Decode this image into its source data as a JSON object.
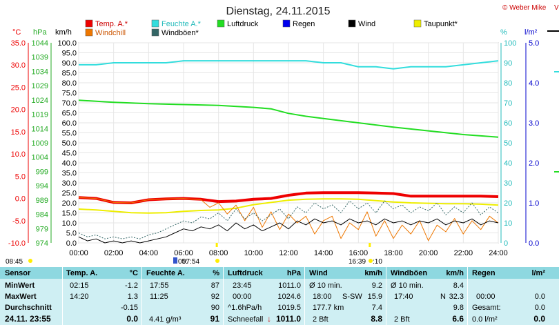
{
  "header": {
    "title": "Dienstag, 24.11.2015",
    "copyright": "© Weber Mike"
  },
  "legend": [
    {
      "label": "Temp. A.*",
      "color": "#ee0000"
    },
    {
      "label": "Feuchte A.*",
      "color": "#33dddd"
    },
    {
      "label": "Luftdruck",
      "color": "#22dd22"
    },
    {
      "label": "Regen",
      "color": "#0000ee"
    },
    {
      "label": "Wind",
      "color": "#000000"
    },
    {
      "label": "Taupunkt*",
      "color": "#eeee00"
    },
    {
      "label": "Windchill",
      "color": "#ee7700"
    },
    {
      "label": "Windböen*",
      "color": "#336666"
    }
  ],
  "axes_units": {
    "temp": "°C",
    "pressure": "hPa",
    "wind": "km/h",
    "humidity": "%",
    "rain": "l/m²"
  },
  "chart_data": {
    "type": "line",
    "x_ticks": [
      "00:00",
      "02:00",
      "04:00",
      "06:00",
      "08:00",
      "10:00",
      "12:00",
      "14:00",
      "16:00",
      "18:00",
      "20:00",
      "22:00",
      "24:00"
    ],
    "xlim": [
      "00:00",
      "24:00"
    ],
    "y_axes": {
      "temp_c": {
        "ticks": [
          "35.0",
          "30.0",
          "25.0",
          "20.0",
          "15.0",
          "10.0",
          "5.0",
          "0.0",
          "-5.0",
          "-10.0"
        ],
        "range": [
          -10,
          35
        ]
      },
      "pressure_hpa": {
        "ticks": [
          "1044",
          "1039",
          "1034",
          "1029",
          "1024",
          "1019",
          "1014",
          "1009",
          "1004",
          "999",
          "994",
          "989",
          "984",
          "979",
          "974"
        ],
        "range": [
          974,
          1044
        ]
      },
      "wind_kmh": {
        "ticks": [
          "100.0",
          "95.0",
          "90.0",
          "85.0",
          "80.0",
          "75.0",
          "70.0",
          "65.0",
          "60.0",
          "55.0",
          "50.0",
          "45.0",
          "40.0",
          "35.0",
          "30.0",
          "25.0",
          "20.0",
          "15.0",
          "10.0",
          "5.0",
          "0.0"
        ],
        "range": [
          0,
          100
        ]
      },
      "humidity_pct": {
        "ticks": [
          "100",
          "90",
          "80",
          "70",
          "60",
          "50",
          "40",
          "30",
          "20",
          "10",
          "0"
        ],
        "range": [
          0,
          100
        ]
      },
      "rain_lm2": {
        "ticks": [
          "5.0",
          "4.0",
          "3.0",
          "2.0",
          "1.0",
          "0.0"
        ],
        "range": [
          0,
          5
        ]
      }
    },
    "grid": true,
    "series": [
      {
        "name": "Temp. A.*",
        "axis": "temp_c",
        "color": "#ee0000",
        "width": 4,
        "x": [
          0,
          1,
          2,
          3,
          4,
          5,
          6,
          7,
          8,
          9,
          10,
          11,
          12,
          13,
          14,
          15,
          16,
          17,
          18,
          19,
          20,
          21,
          22,
          23,
          24
        ],
        "y": [
          0.2,
          0.0,
          -0.9,
          -1.0,
          -0.3,
          -0.1,
          0.0,
          -0.2,
          -0.7,
          -0.6,
          -0.2,
          0.0,
          0.7,
          1.2,
          1.3,
          1.3,
          1.3,
          1.2,
          1.1,
          0.5,
          0.5,
          0.5,
          0.5,
          0.5,
          0.4
        ]
      },
      {
        "name": "Feuchte A.*",
        "axis": "humidity_pct",
        "color": "#33dddd",
        "width": 2,
        "x": [
          0,
          1,
          2,
          3,
          4,
          5,
          6,
          7,
          8,
          9,
          10,
          11,
          12,
          13,
          14,
          15,
          16,
          17,
          18,
          19,
          20,
          21,
          22,
          23,
          24
        ],
        "y": [
          89,
          89,
          90,
          90,
          90,
          90,
          91,
          91,
          91,
          91,
          91,
          91,
          91,
          91,
          90,
          90,
          88,
          88,
          87,
          88,
          88,
          88,
          89,
          90,
          91
        ]
      },
      {
        "name": "Luftdruck",
        "axis": "pressure_hpa",
        "color": "#22dd22",
        "width": 2,
        "x": [
          0,
          2,
          4,
          6,
          8,
          10,
          11,
          12,
          13,
          14,
          16,
          18,
          20,
          22,
          24
        ],
        "y": [
          1023.9,
          1023.2,
          1022.7,
          1022.4,
          1022.1,
          1021.4,
          1020.9,
          1019.3,
          1018.3,
          1017.5,
          1016.0,
          1014.5,
          1013.2,
          1011.9,
          1011.0
        ]
      },
      {
        "name": "Taupunkt*",
        "axis": "temp_c",
        "color": "#eeee00",
        "width": 2,
        "x": [
          0,
          1,
          2,
          3,
          4,
          5,
          6,
          7,
          8,
          9,
          10,
          11,
          12,
          13,
          14,
          15,
          16,
          17,
          18,
          19,
          20,
          21,
          22,
          23,
          24
        ],
        "y": [
          -2.4,
          -2.6,
          -2.9,
          -3.2,
          -3.3,
          -3.2,
          -2.9,
          -2.7,
          -2.6,
          -2.2,
          -1.4,
          -0.9,
          -0.4,
          -0.2,
          -0.1,
          -0.1,
          -0.2,
          -0.5,
          -0.8,
          -1.0,
          -1.1,
          -1.2,
          -1.2,
          -1.3,
          -1.5
        ]
      },
      {
        "name": "Windchill",
        "axis": "temp_c",
        "color": "#ee7700",
        "width": 1,
        "x": [
          0,
          1,
          2,
          3,
          4,
          5,
          6,
          7,
          7.5,
          8,
          8.5,
          9,
          9.5,
          10,
          10.5,
          11,
          11.5,
          12,
          12.5,
          13,
          13.5,
          14,
          14.5,
          15,
          15.5,
          16,
          16.5,
          17,
          17.5,
          18,
          18.5,
          19,
          19.5,
          20,
          20.5,
          21,
          21.5,
          22,
          22.5,
          23,
          23.5,
          24
        ],
        "y": [
          0.2,
          0.0,
          -0.9,
          -1.0,
          -0.3,
          -0.1,
          0.0,
          -0.3,
          -2.0,
          -1.0,
          -3.5,
          -1.5,
          -5.0,
          -2.0,
          -6.5,
          -3.0,
          -7.0,
          -3.5,
          -5.5,
          -4.0,
          -8.0,
          -5.0,
          -4.0,
          -9.0,
          -5.5,
          -7.0,
          -3.0,
          -8.5,
          -5.0,
          -9.0,
          -6.0,
          -8.0,
          -5.0,
          -9.5,
          -6.0,
          -7.5,
          -4.5,
          -8.0,
          -5.0,
          -7.0,
          -4.0,
          -5.5
        ]
      },
      {
        "name": "Wind",
        "axis": "wind_kmh",
        "color": "#000000",
        "width": 1,
        "x": [
          0,
          0.5,
          1,
          1.5,
          2,
          2.5,
          3,
          3.5,
          4,
          4.5,
          5,
          5.5,
          6,
          6.5,
          7,
          7.5,
          8,
          8.5,
          9,
          9.5,
          10,
          10.5,
          11,
          11.5,
          12,
          12.5,
          13,
          13.5,
          14,
          14.5,
          15,
          15.5,
          16,
          16.5,
          17,
          17.5,
          18,
          18.5,
          19,
          19.5,
          20,
          20.5,
          21,
          21.5,
          22,
          22.5,
          23,
          23.5,
          24
        ],
        "y": [
          3,
          1,
          2,
          0,
          1,
          0,
          1,
          0,
          1,
          2,
          3,
          5,
          7,
          6,
          8,
          7,
          9,
          6,
          10,
          7,
          9,
          6,
          8,
          10,
          7,
          11,
          9,
          12,
          10,
          11,
          9,
          12,
          10,
          11,
          9,
          12,
          10,
          11,
          9,
          11,
          10,
          12,
          9,
          11,
          10,
          12,
          9,
          11,
          10
        ]
      },
      {
        "name": "Windböen*",
        "axis": "wind_kmh",
        "color": "#336666",
        "width": 1,
        "dashed": true,
        "x": [
          0,
          0.5,
          1,
          1.5,
          2,
          2.5,
          3,
          3.5,
          4,
          4.5,
          5,
          5.5,
          6,
          6.5,
          7,
          7.5,
          8,
          8.5,
          9,
          9.5,
          10,
          10.5,
          11,
          11.5,
          12,
          12.5,
          13,
          13.5,
          14,
          14.5,
          15,
          15.5,
          16,
          16.5,
          17,
          17.5,
          18,
          18.5,
          19,
          19.5,
          20,
          20.5,
          21,
          21.5,
          22,
          22.5,
          23,
          23.5,
          24
        ],
        "y": [
          5,
          3,
          4,
          2,
          3,
          2,
          3,
          2,
          4,
          5,
          7,
          9,
          11,
          10,
          13,
          12,
          15,
          11,
          17,
          12,
          15,
          11,
          14,
          17,
          12,
          18,
          15,
          20,
          17,
          19,
          15,
          21,
          17,
          20,
          15,
          21,
          17,
          19,
          15,
          18,
          16,
          20,
          14,
          18,
          15,
          20,
          14,
          18,
          15
        ]
      }
    ],
    "markers": [
      {
        "label": "08:45",
        "x": "08:45",
        "color": "#ffee00",
        "position": "left"
      },
      {
        "label": "05:",
        "x": "07:54",
        "color": "#ffee00",
        "position": "sunrise"
      },
      {
        "label": "07:54",
        "x": "07:54",
        "color": "#ffee00",
        "position": "bottom"
      },
      {
        "label": "16:39",
        "x": "16:39",
        "color": "#ffee00",
        "position": "bottom"
      },
      {
        "label": ":10",
        "x": "16:39",
        "color": "#ffee00",
        "position": "bottom"
      }
    ]
  },
  "table": {
    "headers": {
      "sensor": "Sensor",
      "temp": "Temp. A.",
      "temp_unit": "°C",
      "hum": "Feuchte A.",
      "hum_unit": "%",
      "press": "Luftdruck",
      "press_unit": "hPa",
      "wind": "Wind",
      "wind_unit": "km/h",
      "gust": "Windböen",
      "gust_unit": "km/h",
      "rain": "Regen",
      "rain_unit": "l/m²"
    },
    "rows": {
      "min": {
        "label": "MinWert",
        "temp_time": "02:15",
        "temp_val": "-1.2",
        "hum_time": "17:55",
        "hum_val": "87",
        "press_time": "23:45",
        "press_val": "1011.0",
        "wind_label": "Ø 10 min.",
        "wind_val": "9.2",
        "gust_label": "Ø 10 min.",
        "gust_val": "8.4",
        "rain_label": "",
        "rain_val": ""
      },
      "max": {
        "label": "MaxWert",
        "temp_time": "14:20",
        "temp_val": "1.3",
        "hum_time": "11:25",
        "hum_val": "92",
        "press_time": "00:00",
        "press_val": "1024.6",
        "wind_time": "18:00",
        "wind_dir": "S-SW",
        "wind_val": "15.9",
        "gust_time": "17:40",
        "gust_dir": "N",
        "gust_val": "32.3",
        "rain_time": "00:00",
        "rain_val": "0.0"
      },
      "avg": {
        "label": "Durchschnitt",
        "temp_val": "-0.15",
        "hum_val": "90",
        "press_trend": "^1.6hPa/h",
        "press_val": "1019.5",
        "wind_label": "177.7 km",
        "wind_val": "7.4",
        "gust_val": "9.8",
        "rain_label": "Gesamt:",
        "rain_val": "0.0"
      },
      "current": {
        "label": "24.11. 23:55",
        "temp_val": "0.0",
        "hum_extra": "4.41 g/m³",
        "hum_val": "91",
        "press_label": "Schneefall",
        "press_trend_arrow": "↓",
        "press_val": "1011.0",
        "wind_bft": "2 Bft",
        "wind_val": "8.8",
        "gust_bft": "2 Bft",
        "gust_val": "6.6",
        "rain_label": "0.0 l/m²",
        "rain_val": "0.0"
      }
    }
  }
}
